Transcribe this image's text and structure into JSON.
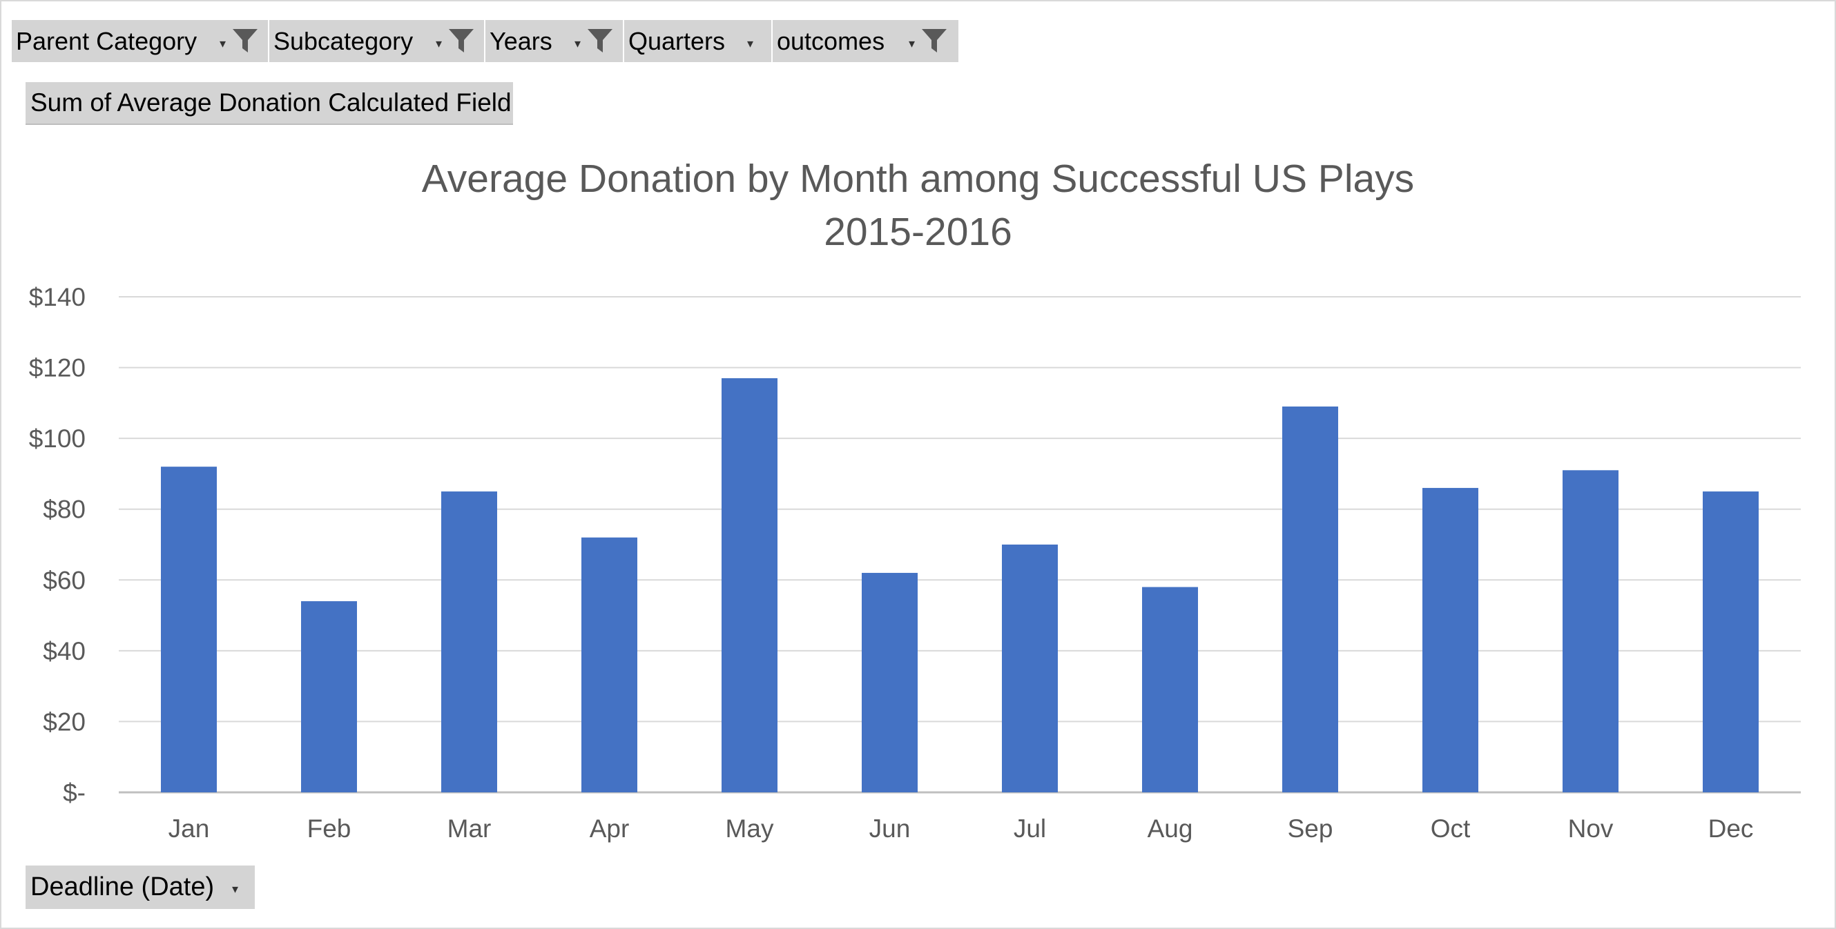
{
  "filters": [
    {
      "label": "Parent Category",
      "filtered": true
    },
    {
      "label": "Subcategory",
      "filtered": true
    },
    {
      "label": "Years",
      "filtered": true
    },
    {
      "label": "Quarters",
      "filtered": false
    },
    {
      "label": "outcomes",
      "filtered": true
    }
  ],
  "value_field": {
    "label": "Sum of Average Donation Calculated Field"
  },
  "axis_field": {
    "label": "Deadline (Date)"
  },
  "colors": {
    "bar": "#4472C4",
    "grid": "#d9d9d9",
    "axis_text": "#595959",
    "field_button": "#d4d4d4",
    "funnel": "#595959"
  },
  "icons": {
    "filter": "funnel-icon",
    "dropdown": "dropdown-arrow-icon"
  },
  "chart_data": {
    "type": "bar",
    "title": "Average Donation by Month among Successful US Plays",
    "subtitle": "2015-2016",
    "categories": [
      "Jan",
      "Feb",
      "Mar",
      "Apr",
      "May",
      "Jun",
      "Jul",
      "Aug",
      "Sep",
      "Oct",
      "Nov",
      "Dec"
    ],
    "values": [
      92,
      54,
      85,
      72,
      117,
      62,
      70,
      58,
      109,
      86,
      91,
      85
    ],
    "ylim": [
      0,
      140
    ],
    "yticks": [
      0,
      20,
      40,
      60,
      80,
      100,
      120,
      140
    ],
    "ytick_labels": [
      "$-",
      "$20",
      "$40",
      "$60",
      "$80",
      "$100",
      "$120",
      "$140"
    ],
    "xlabel": "",
    "ylabel": "",
    "grid": true,
    "legend": "none"
  }
}
